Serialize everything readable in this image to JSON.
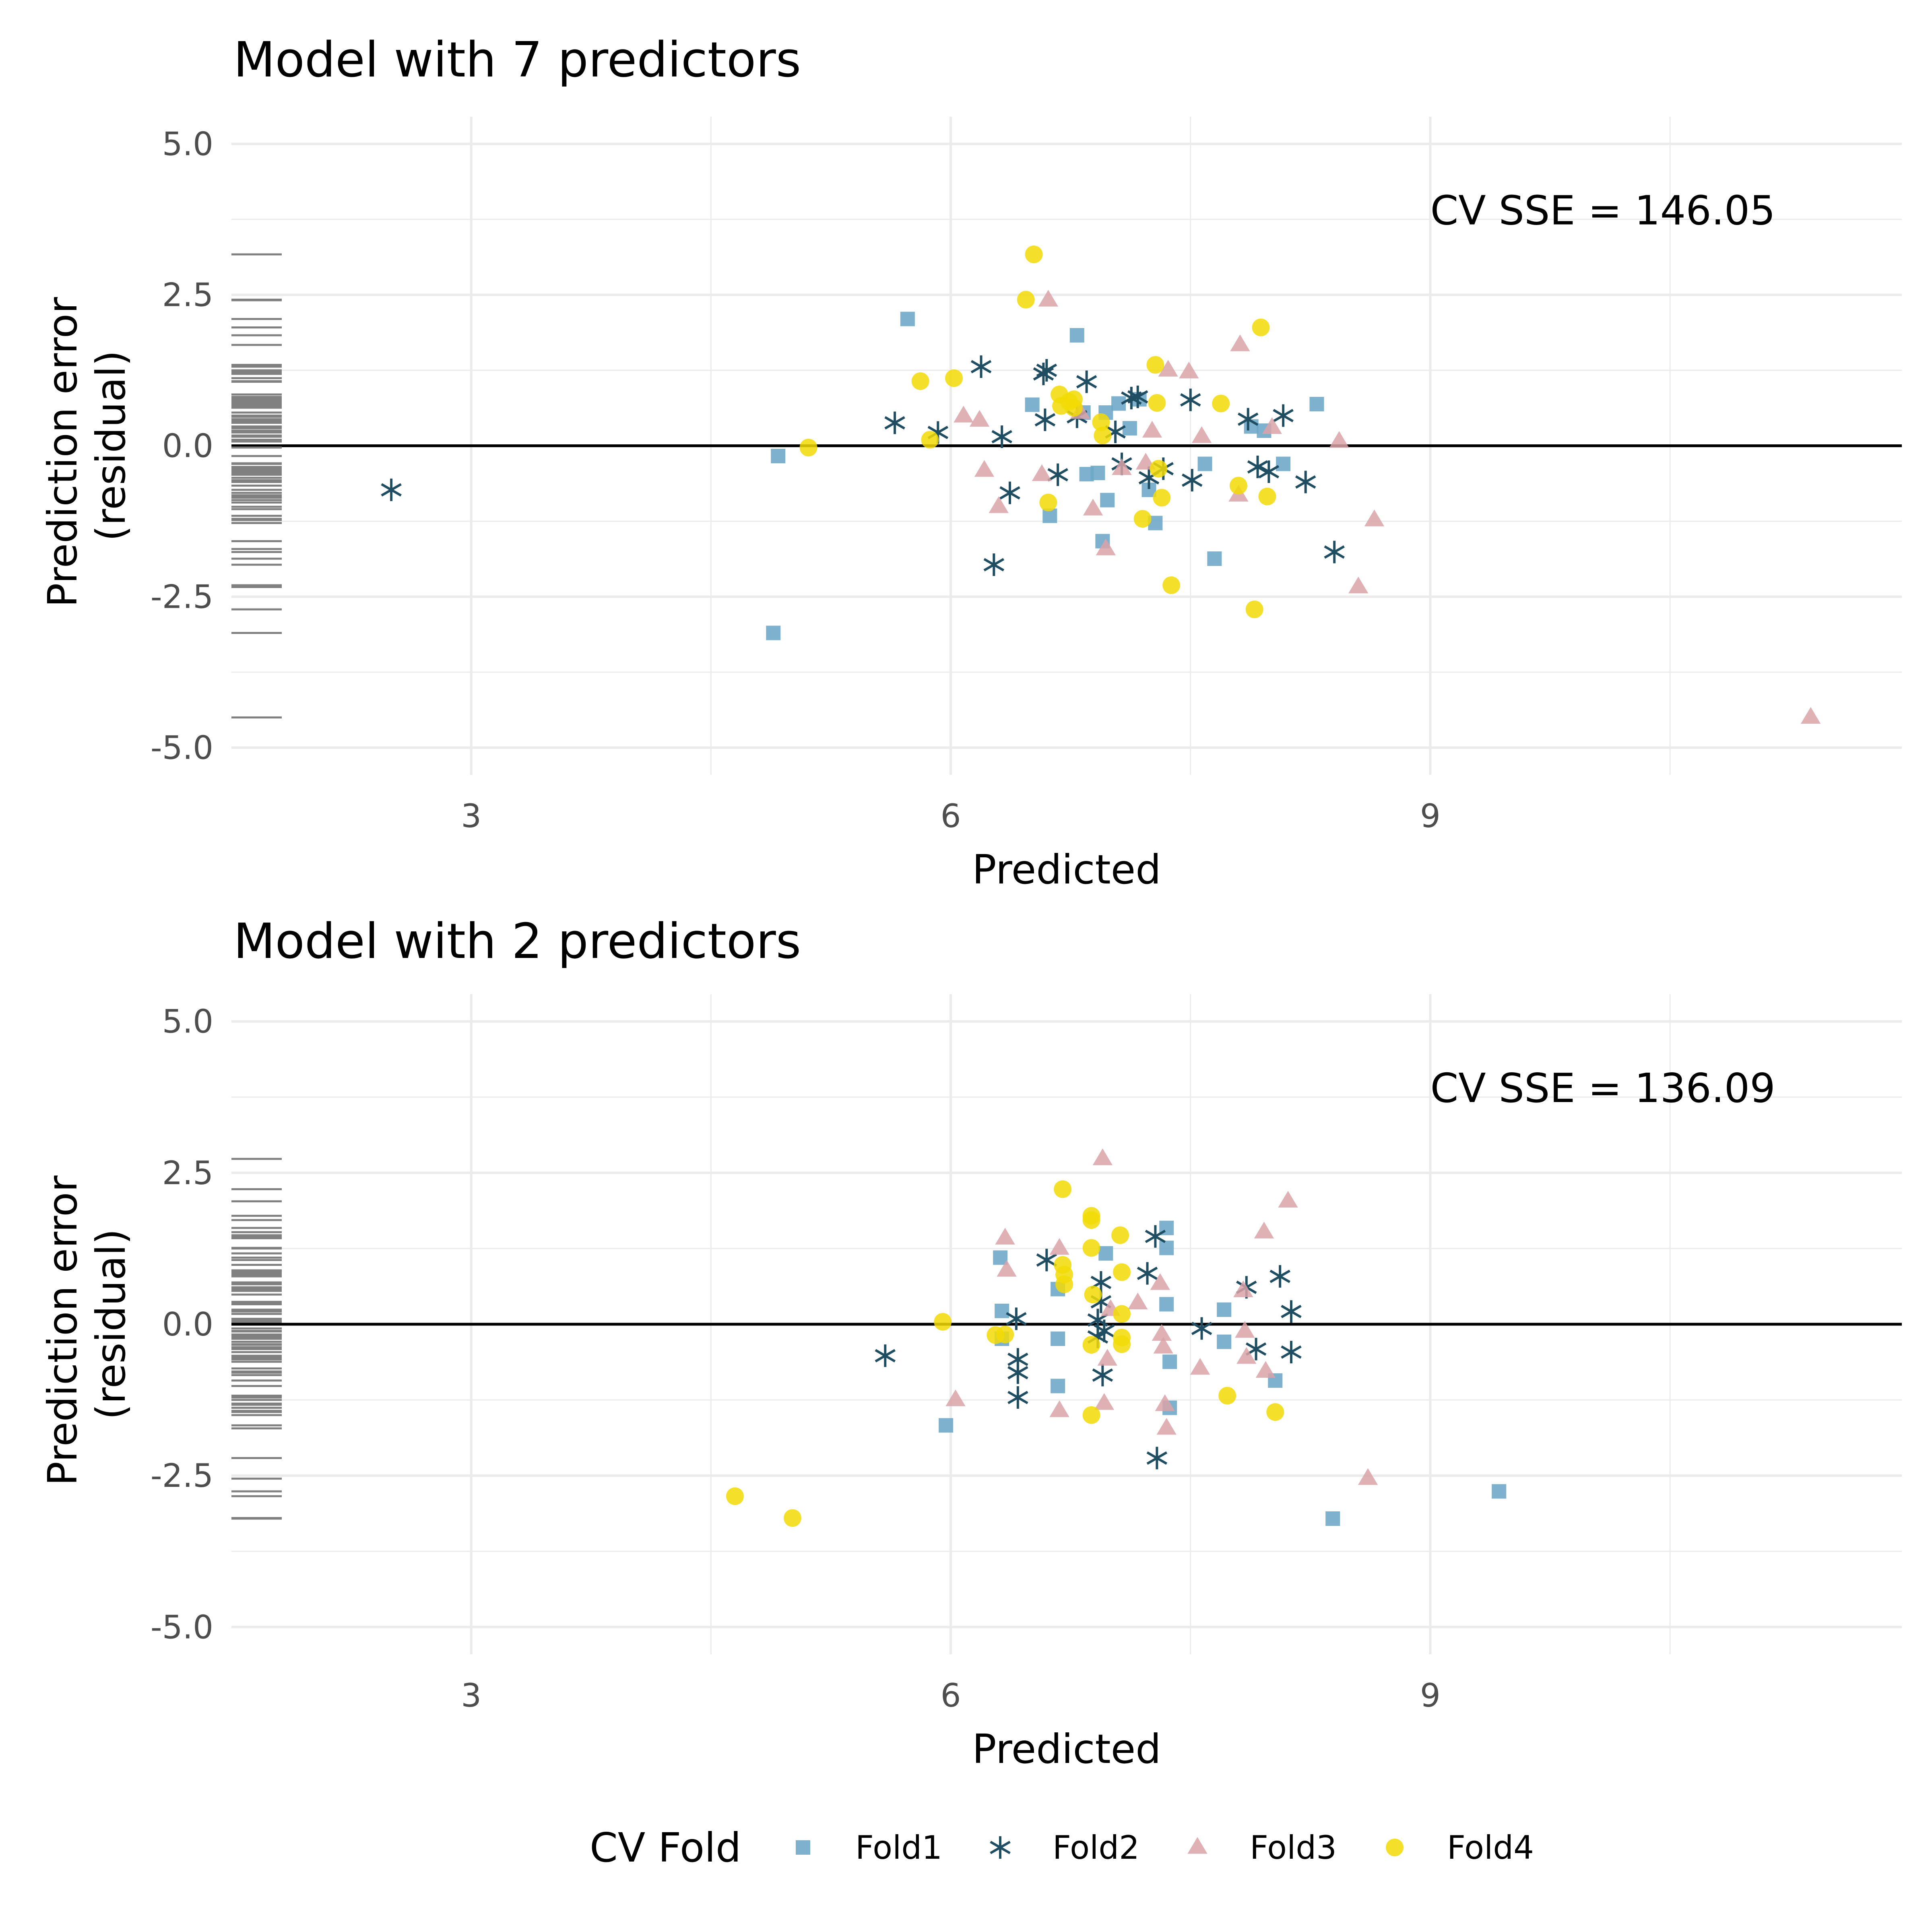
{
  "colors": {
    "Fold1": "#6fa8c8",
    "Fold2": "#1f4e62",
    "Fold3": "#d9a3a8",
    "Fold4": "#f2db06",
    "grid": "#ebebeb",
    "rug": "#808080",
    "zero_line": "#000000",
    "text": "#000000",
    "tick_text": "#4d4d4d"
  },
  "legend": {
    "title": "CV Fold",
    "position": "bottom",
    "entries": [
      {
        "label": "Fold1",
        "shape": "square-icon"
      },
      {
        "label": "Fold2",
        "shape": "asterisk-icon"
      },
      {
        "label": "Fold3",
        "shape": "triangle-icon"
      },
      {
        "label": "Fold4",
        "shape": "circle-icon"
      }
    ]
  },
  "chart_data": [
    {
      "type": "scatter",
      "title": "Model with 7 predictors",
      "xlabel": "Predicted",
      "ylabel": "Prediction error\n(residual)",
      "annotation": "CV SSE = 146.05",
      "xlim": [
        1.5,
        11.95
      ],
      "ylim": [
        -5.45,
        5.45
      ],
      "x_ticks": [
        3,
        6,
        9
      ],
      "x_tick_labels": [
        "3",
        "6",
        "9"
      ],
      "y_ticks": [
        -5,
        -2.5,
        0,
        2.5,
        5
      ],
      "y_tick_labels": [
        "-5.0",
        "-2.5",
        "0.0",
        "2.5",
        "5.0"
      ],
      "grid": true,
      "series": [
        {
          "name": "Fold1",
          "points": [
            [
              5.73,
              2.1
            ],
            [
              4.92,
              -0.17
            ],
            [
              4.89,
              -3.1
            ],
            [
              6.51,
              0.68
            ],
            [
              6.79,
              1.83
            ],
            [
              6.83,
              0.55
            ],
            [
              6.85,
              -0.47
            ],
            [
              6.62,
              -1.16
            ],
            [
              6.92,
              -0.45
            ],
            [
              6.95,
              -1.58
            ],
            [
              6.97,
              0.55
            ],
            [
              7.05,
              0.7
            ],
            [
              7.12,
              0.29
            ],
            [
              7.18,
              0.77
            ],
            [
              7.24,
              -0.73
            ],
            [
              7.28,
              -1.28
            ],
            [
              7.59,
              -0.3
            ],
            [
              7.65,
              -1.87
            ],
            [
              7.88,
              0.32
            ],
            [
              7.96,
              0.25
            ],
            [
              8.08,
              -0.3
            ],
            [
              8.29,
              0.69
            ],
            [
              6.98,
              -0.9
            ]
          ]
        },
        {
          "name": "Fold2",
          "points": [
            [
              2.5,
              -0.73
            ],
            [
              5.65,
              0.38
            ],
            [
              5.92,
              0.22
            ],
            [
              6.19,
              1.31
            ],
            [
              6.27,
              -1.97
            ],
            [
              6.32,
              0.15
            ],
            [
              6.37,
              -0.78
            ],
            [
              6.58,
              1.19
            ],
            [
              6.59,
              0.43
            ],
            [
              6.6,
              1.25
            ],
            [
              6.67,
              -0.48
            ],
            [
              6.79,
              0.48
            ],
            [
              6.85,
              1.06
            ],
            [
              7.03,
              0.23
            ],
            [
              7.07,
              -0.3
            ],
            [
              7.13,
              0.79
            ],
            [
              7.17,
              0.81
            ],
            [
              7.24,
              -0.53
            ],
            [
              7.33,
              -0.38
            ],
            [
              7.5,
              0.76
            ],
            [
              7.51,
              -0.57
            ],
            [
              7.86,
              0.44
            ],
            [
              7.92,
              -0.35
            ],
            [
              7.99,
              -0.43
            ],
            [
              8.08,
              0.5
            ],
            [
              8.22,
              -0.6
            ],
            [
              8.4,
              -1.76
            ]
          ]
        },
        {
          "name": "Fold3",
          "points": [
            [
              6.08,
              0.49
            ],
            [
              6.18,
              0.42
            ],
            [
              6.21,
              -0.41
            ],
            [
              6.3,
              -1.01
            ],
            [
              6.57,
              -0.48
            ],
            [
              6.61,
              2.41
            ],
            [
              6.81,
              0.55
            ],
            [
              6.89,
              -1.05
            ],
            [
              6.97,
              -1.71
            ],
            [
              7.07,
              -0.38
            ],
            [
              7.22,
              -0.29
            ],
            [
              7.26,
              0.24
            ],
            [
              7.36,
              1.25
            ],
            [
              7.49,
              1.22
            ],
            [
              7.57,
              0.15
            ],
            [
              7.8,
              -0.82
            ],
            [
              7.81,
              1.67
            ],
            [
              8.01,
              0.3
            ],
            [
              8.43,
              0.07
            ],
            [
              8.55,
              -2.34
            ],
            [
              8.65,
              -1.23
            ],
            [
              11.38,
              -4.5
            ]
          ]
        },
        {
          "name": "Fold4",
          "points": [
            [
              5.11,
              -0.03
            ],
            [
              5.81,
              1.07
            ],
            [
              5.87,
              0.1
            ],
            [
              6.02,
              1.12
            ],
            [
              6.47,
              2.42
            ],
            [
              6.52,
              3.17
            ],
            [
              6.61,
              -0.94
            ],
            [
              6.68,
              0.85
            ],
            [
              6.69,
              0.66
            ],
            [
              6.74,
              0.73
            ],
            [
              6.77,
              0.77
            ],
            [
              6.77,
              0.63
            ],
            [
              6.94,
              0.39
            ],
            [
              6.95,
              0.17
            ],
            [
              7.2,
              -1.21
            ],
            [
              7.28,
              1.34
            ],
            [
              7.29,
              0.71
            ],
            [
              7.3,
              -0.38
            ],
            [
              7.32,
              -0.86
            ],
            [
              7.38,
              -2.31
            ],
            [
              7.69,
              0.7
            ],
            [
              7.8,
              -0.66
            ],
            [
              7.9,
              -2.71
            ],
            [
              7.94,
              1.96
            ],
            [
              7.98,
              -0.84
            ]
          ]
        }
      ]
    },
    {
      "type": "scatter",
      "title": "Model with 2 predictors",
      "xlabel": "Predicted",
      "ylabel": "Prediction error\n(residual)",
      "annotation": "CV SSE = 136.09",
      "xlim": [
        1.5,
        11.95
      ],
      "ylim": [
        -5.45,
        5.45
      ],
      "x_ticks": [
        3,
        6,
        9
      ],
      "x_tick_labels": [
        "3",
        "6",
        "9"
      ],
      "y_ticks": [
        -5,
        -2.5,
        0,
        2.5,
        5
      ],
      "y_tick_labels": [
        "-5.0",
        "-2.5",
        "0.0",
        "2.5",
        "5.0"
      ],
      "grid": true,
      "series": [
        {
          "name": "Fold1",
          "points": [
            [
              5.97,
              -1.67
            ],
            [
              6.31,
              1.1
            ],
            [
              6.32,
              0.22
            ],
            [
              6.32,
              -0.24
            ],
            [
              6.67,
              -1.02
            ],
            [
              6.67,
              -0.24
            ],
            [
              6.67,
              0.58
            ],
            [
              6.97,
              1.17
            ],
            [
              7.35,
              1.59
            ],
            [
              7.35,
              1.26
            ],
            [
              7.35,
              0.33
            ],
            [
              7.37,
              -0.62
            ],
            [
              7.37,
              -1.38
            ],
            [
              7.71,
              0.24
            ],
            [
              7.71,
              -0.29
            ],
            [
              8.03,
              -0.93
            ],
            [
              8.39,
              -3.21
            ],
            [
              9.43,
              -2.76
            ]
          ]
        },
        {
          "name": "Fold2",
          "points": [
            [
              5.59,
              -0.52
            ],
            [
              6.41,
              0.09
            ],
            [
              6.42,
              -0.58
            ],
            [
              6.42,
              -0.8
            ],
            [
              6.42,
              -1.21
            ],
            [
              6.6,
              1.06
            ],
            [
              6.92,
              0.07
            ],
            [
              6.92,
              -0.21
            ],
            [
              6.94,
              0.37
            ],
            [
              6.94,
              0.69
            ],
            [
              6.95,
              -0.84
            ],
            [
              6.96,
              -0.11
            ],
            [
              7.23,
              0.84
            ],
            [
              7.28,
              1.45
            ],
            [
              7.29,
              -2.21
            ],
            [
              7.57,
              -0.07
            ],
            [
              7.85,
              0.61
            ],
            [
              7.91,
              -0.41
            ],
            [
              8.06,
              0.79
            ],
            [
              8.13,
              0.21
            ],
            [
              8.13,
              -0.46
            ]
          ]
        },
        {
          "name": "Fold3",
          "points": [
            [
              6.03,
              -1.25
            ],
            [
              6.34,
              1.42
            ],
            [
              6.35,
              0.89
            ],
            [
              6.68,
              1.25
            ],
            [
              6.68,
              -1.43
            ],
            [
              6.95,
              2.73
            ],
            [
              6.96,
              -1.31
            ],
            [
              6.98,
              -0.58
            ],
            [
              7.0,
              0.24
            ],
            [
              7.17,
              0.35
            ],
            [
              7.31,
              0.67
            ],
            [
              7.32,
              -0.17
            ],
            [
              7.33,
              -0.38
            ],
            [
              7.34,
              -1.33
            ],
            [
              7.35,
              -1.72
            ],
            [
              7.56,
              -0.73
            ],
            [
              7.83,
              0.55
            ],
            [
              7.84,
              -0.12
            ],
            [
              7.85,
              -0.55
            ],
            [
              7.96,
              1.52
            ],
            [
              7.97,
              -0.78
            ],
            [
              8.11,
              2.03
            ],
            [
              8.61,
              -2.55
            ]
          ]
        },
        {
          "name": "Fold4",
          "points": [
            [
              4.65,
              -2.84
            ],
            [
              5.01,
              -3.2
            ],
            [
              5.95,
              0.04
            ],
            [
              6.28,
              -0.18
            ],
            [
              6.34,
              -0.17
            ],
            [
              6.7,
              2.23
            ],
            [
              6.7,
              0.98
            ],
            [
              6.71,
              0.82
            ],
            [
              6.71,
              0.66
            ],
            [
              6.88,
              1.79
            ],
            [
              6.88,
              1.72
            ],
            [
              6.88,
              1.26
            ],
            [
              6.88,
              -0.34
            ],
            [
              6.88,
              -1.5
            ],
            [
              6.89,
              0.49
            ],
            [
              7.06,
              1.47
            ],
            [
              7.07,
              0.86
            ],
            [
              7.07,
              0.17
            ],
            [
              7.07,
              -0.22
            ],
            [
              7.07,
              -0.33
            ],
            [
              7.73,
              -1.18
            ],
            [
              8.03,
              -1.45
            ]
          ]
        }
      ]
    }
  ]
}
